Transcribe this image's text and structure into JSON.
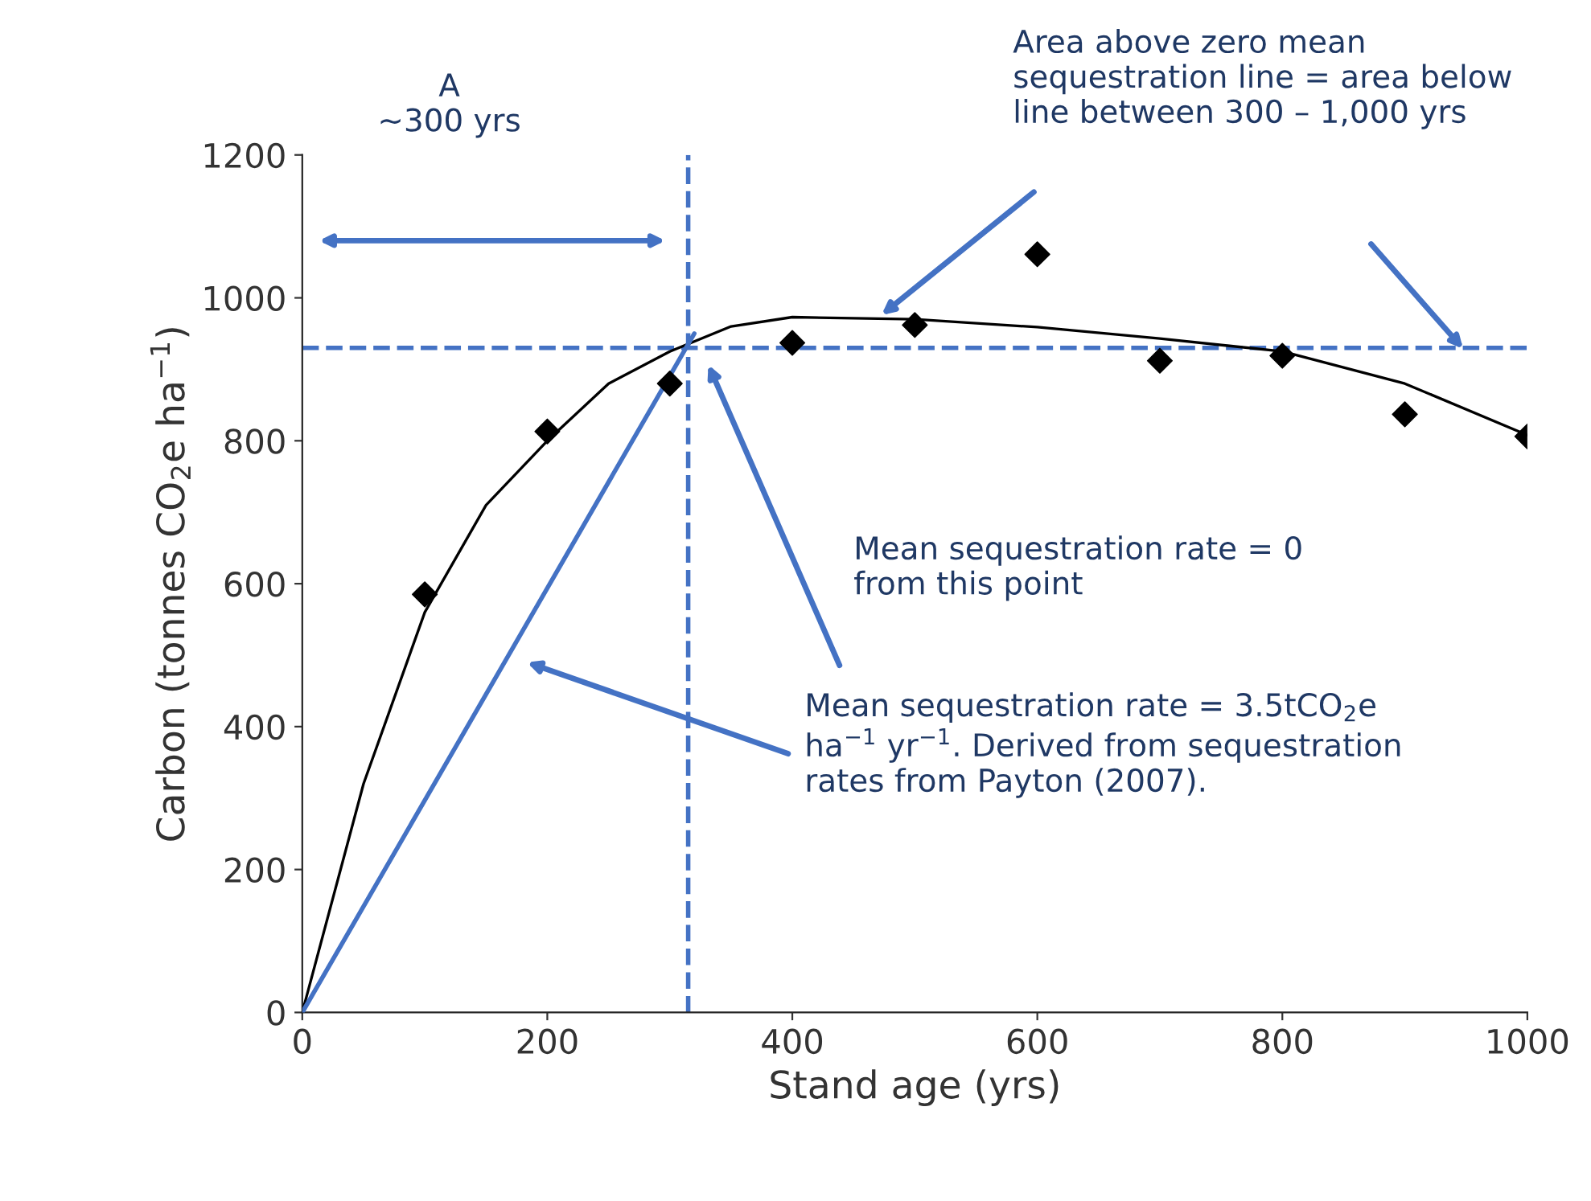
{
  "chart_data": {
    "type": "scatter",
    "xlabel": "Stand age (yrs)",
    "ylabel": "Carbon (tonnes CO$_{2}$e ha$^{−1}$)",
    "xlim": [
      0,
      1000
    ],
    "xticks": [
      0,
      200,
      400,
      600,
      800,
      1000
    ],
    "ylim": [
      0,
      1200
    ],
    "yticks": [
      0,
      200,
      400,
      600,
      800,
      1000,
      1200
    ],
    "grid": false,
    "series": [
      {
        "marker": "diamond",
        "color": "#000000",
        "x": [
          100,
          200,
          300,
          400,
          500,
          600,
          700,
          800,
          900,
          1000
        ],
        "values": [
          585,
          813,
          880,
          937,
          962,
          1061,
          912,
          919,
          837,
          806
        ]
      },
      {
        "type": "line",
        "color": "#000000",
        "line_style": "solid",
        "x": [
          0,
          50,
          100,
          150,
          200,
          250,
          300,
          350,
          400,
          500,
          600,
          700,
          800,
          900,
          1000
        ],
        "values": [
          0,
          320,
          560,
          710,
          800,
          880,
          925,
          960,
          973,
          970,
          959,
          943,
          925,
          880,
          808
        ]
      },
      {
        "type": "line",
        "color": "#4472c4",
        "line_style": "solid",
        "x": [
          0,
          320
        ],
        "values": [
          0,
          950
        ]
      }
    ],
    "ref_lines": [
      {
        "axis": "y",
        "value": 930,
        "color": "#4472c4",
        "line_style": "dashed"
      },
      {
        "axis": "x",
        "value": 315,
        "color": "#4472c4",
        "line_style": "dashed"
      }
    ],
    "annotations": [
      "A\n~300 yrs",
      "Area above zero mean\nsequestration line = area below\nline between 300 – 1,000 yrs",
      "Mean sequestration rate = 0\nfrom this point",
      "Mean sequestration rate = 3.5tCO$_{2}$e\nha$^{−1}$ yr$^{−1}$. Derived from sequestration\nrates from Payton (2007)."
    ]
  }
}
